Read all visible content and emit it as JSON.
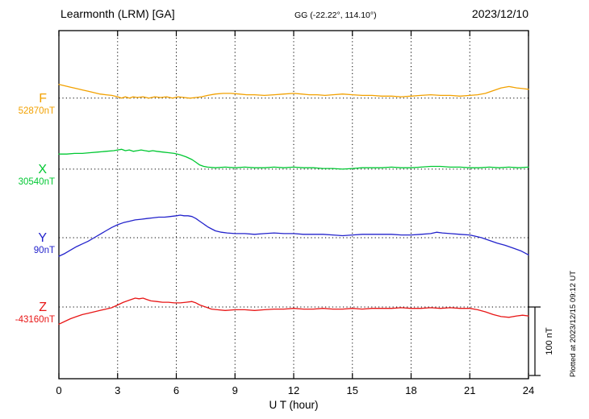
{
  "chart_data": {
    "type": "line",
    "title": "Learmonth (LRM)  [GA]",
    "subtitle": "GG (-22.22°, 114.10°)",
    "date": "2023/12/10",
    "xlabel": "U T (hour)",
    "xlim": [
      0,
      24
    ],
    "xticks": [
      0,
      3,
      6,
      9,
      12,
      15,
      18,
      21,
      24
    ],
    "grid": "dotted vertical lines at 3h intervals, dotted horizontal baseline per trace",
    "legend_position": "left-of-axis",
    "scale_bar_label": "100 nT",
    "scale_bar_nt": 100,
    "plotted_note": "Plotted at 2023/12/15 09:12 UT",
    "frame_color": "#000000",
    "series": [
      {
        "name": "F",
        "baseline_label": "52870nT",
        "color": "#f2a100",
        "baseline_frac": 0.194,
        "unit": "nT offset from baseline",
        "points": [
          [
            0,
            20
          ],
          [
            0.3,
            18
          ],
          [
            0.6,
            16
          ],
          [
            0.9,
            14
          ],
          [
            1.2,
            12
          ],
          [
            1.5,
            10
          ],
          [
            1.8,
            8
          ],
          [
            2.1,
            6
          ],
          [
            2.4,
            5
          ],
          [
            2.7,
            4
          ],
          [
            3.0,
            2
          ],
          [
            3.2,
            0
          ],
          [
            3.4,
            2
          ],
          [
            3.6,
            0
          ],
          [
            3.8,
            2
          ],
          [
            4.0,
            1
          ],
          [
            4.3,
            2
          ],
          [
            4.6,
            0
          ],
          [
            4.9,
            2
          ],
          [
            5.2,
            1
          ],
          [
            5.5,
            2
          ],
          [
            5.8,
            0
          ],
          [
            6.1,
            2
          ],
          [
            6.4,
            1
          ],
          [
            6.7,
            0
          ],
          [
            7.0,
            1
          ],
          [
            7.3,
            2
          ],
          [
            7.6,
            4
          ],
          [
            8.0,
            6
          ],
          [
            8.4,
            7
          ],
          [
            8.8,
            7
          ],
          [
            9.2,
            6
          ],
          [
            9.6,
            5
          ],
          [
            10.0,
            5
          ],
          [
            10.5,
            4
          ],
          [
            11.0,
            5
          ],
          [
            11.5,
            6
          ],
          [
            12.0,
            7
          ],
          [
            12.4,
            6
          ],
          [
            12.8,
            5
          ],
          [
            13.2,
            5
          ],
          [
            13.6,
            4
          ],
          [
            14.0,
            5
          ],
          [
            14.5,
            6
          ],
          [
            15.0,
            5
          ],
          [
            15.5,
            4
          ],
          [
            16.0,
            4
          ],
          [
            16.5,
            3
          ],
          [
            17.0,
            3
          ],
          [
            17.5,
            2
          ],
          [
            18.0,
            3
          ],
          [
            18.5,
            4
          ],
          [
            19.0,
            5
          ],
          [
            19.5,
            4
          ],
          [
            20.0,
            4
          ],
          [
            20.5,
            3
          ],
          [
            21.0,
            4
          ],
          [
            21.4,
            5
          ],
          [
            21.8,
            7
          ],
          [
            22.2,
            11
          ],
          [
            22.6,
            15
          ],
          [
            23.0,
            17
          ],
          [
            23.4,
            15
          ],
          [
            23.7,
            14
          ],
          [
            24,
            13
          ]
        ]
      },
      {
        "name": "X",
        "baseline_label": "30540nT",
        "color": "#00c832",
        "baseline_frac": 0.398,
        "unit": "nT offset from baseline",
        "points": [
          [
            0,
            22
          ],
          [
            0.4,
            22
          ],
          [
            0.8,
            23
          ],
          [
            1.2,
            23
          ],
          [
            1.6,
            24
          ],
          [
            2.0,
            25
          ],
          [
            2.4,
            26
          ],
          [
            2.8,
            27
          ],
          [
            3.0,
            28
          ],
          [
            3.2,
            29
          ],
          [
            3.4,
            27
          ],
          [
            3.6,
            28
          ],
          [
            3.8,
            26
          ],
          [
            4.0,
            27
          ],
          [
            4.2,
            28
          ],
          [
            4.4,
            27
          ],
          [
            4.6,
            26
          ],
          [
            4.8,
            27
          ],
          [
            5.0,
            26
          ],
          [
            5.3,
            25
          ],
          [
            5.6,
            24
          ],
          [
            5.9,
            23
          ],
          [
            6.2,
            21
          ],
          [
            6.5,
            18
          ],
          [
            6.8,
            14
          ],
          [
            7.0,
            10
          ],
          [
            7.2,
            6
          ],
          [
            7.4,
            4
          ],
          [
            7.6,
            3
          ],
          [
            8.0,
            2
          ],
          [
            8.5,
            3
          ],
          [
            9.0,
            2
          ],
          [
            9.5,
            3
          ],
          [
            10.0,
            2
          ],
          [
            10.5,
            2
          ],
          [
            11.0,
            3
          ],
          [
            11.5,
            2
          ],
          [
            12.0,
            3
          ],
          [
            12.5,
            2
          ],
          [
            13.0,
            2
          ],
          [
            13.5,
            1
          ],
          [
            14.0,
            1
          ],
          [
            14.5,
            0
          ],
          [
            15.0,
            1
          ],
          [
            15.5,
            2
          ],
          [
            16.0,
            2
          ],
          [
            16.5,
            2
          ],
          [
            17.0,
            3
          ],
          [
            17.5,
            2
          ],
          [
            18.0,
            2
          ],
          [
            18.5,
            3
          ],
          [
            19.0,
            4
          ],
          [
            19.5,
            4
          ],
          [
            20.0,
            3
          ],
          [
            20.5,
            3
          ],
          [
            21.0,
            2
          ],
          [
            21.5,
            2
          ],
          [
            22.0,
            3
          ],
          [
            22.5,
            2
          ],
          [
            23.0,
            3
          ],
          [
            23.5,
            2
          ],
          [
            24,
            3
          ]
        ]
      },
      {
        "name": "Y",
        "baseline_label": "90nT",
        "color": "#2323cc",
        "baseline_frac": 0.595,
        "unit": "nT offset from baseline",
        "points": [
          [
            0,
            -27
          ],
          [
            0.3,
            -23
          ],
          [
            0.6,
            -18
          ],
          [
            0.9,
            -13
          ],
          [
            1.2,
            -9
          ],
          [
            1.5,
            -5
          ],
          [
            1.8,
            0
          ],
          [
            2.1,
            5
          ],
          [
            2.4,
            10
          ],
          [
            2.7,
            15
          ],
          [
            3.0,
            19
          ],
          [
            3.3,
            22
          ],
          [
            3.6,
            24
          ],
          [
            3.9,
            26
          ],
          [
            4.2,
            27
          ],
          [
            4.5,
            28
          ],
          [
            4.8,
            29
          ],
          [
            5.1,
            30
          ],
          [
            5.4,
            30
          ],
          [
            5.7,
            31
          ],
          [
            6.0,
            32
          ],
          [
            6.2,
            33
          ],
          [
            6.4,
            32
          ],
          [
            6.6,
            32
          ],
          [
            6.8,
            31
          ],
          [
            7.0,
            28
          ],
          [
            7.2,
            24
          ],
          [
            7.4,
            20
          ],
          [
            7.6,
            16
          ],
          [
            7.8,
            13
          ],
          [
            8.0,
            10
          ],
          [
            8.3,
            8
          ],
          [
            8.6,
            7
          ],
          [
            9.0,
            6
          ],
          [
            9.5,
            6
          ],
          [
            10.0,
            5
          ],
          [
            10.5,
            6
          ],
          [
            11.0,
            7
          ],
          [
            11.5,
            6
          ],
          [
            12.0,
            6
          ],
          [
            12.5,
            5
          ],
          [
            13.0,
            5
          ],
          [
            13.5,
            5
          ],
          [
            14.0,
            4
          ],
          [
            14.5,
            3
          ],
          [
            15.0,
            4
          ],
          [
            15.5,
            5
          ],
          [
            16.0,
            5
          ],
          [
            16.5,
            5
          ],
          [
            17.0,
            5
          ],
          [
            17.5,
            4
          ],
          [
            18.0,
            4
          ],
          [
            18.5,
            5
          ],
          [
            19.0,
            6
          ],
          [
            19.3,
            8
          ],
          [
            19.6,
            7
          ],
          [
            20.0,
            6
          ],
          [
            20.5,
            5
          ],
          [
            21.0,
            4
          ],
          [
            21.3,
            2
          ],
          [
            21.6,
            0
          ],
          [
            22.0,
            -4
          ],
          [
            22.4,
            -8
          ],
          [
            22.8,
            -11
          ],
          [
            23.2,
            -15
          ],
          [
            23.6,
            -19
          ],
          [
            24,
            -25
          ]
        ]
      },
      {
        "name": "Z",
        "baseline_label": "-43160nT",
        "color": "#e81616",
        "baseline_frac": 0.794,
        "unit": "nT offset from baseline",
        "points": [
          [
            0,
            -25
          ],
          [
            0.3,
            -21
          ],
          [
            0.6,
            -17
          ],
          [
            0.9,
            -14
          ],
          [
            1.2,
            -11
          ],
          [
            1.5,
            -9
          ],
          [
            1.8,
            -7
          ],
          [
            2.1,
            -5
          ],
          [
            2.4,
            -3
          ],
          [
            2.7,
            -1
          ],
          [
            3.0,
            3
          ],
          [
            3.3,
            7
          ],
          [
            3.6,
            10
          ],
          [
            3.9,
            13
          ],
          [
            4.1,
            12
          ],
          [
            4.3,
            13
          ],
          [
            4.5,
            11
          ],
          [
            4.7,
            9
          ],
          [
            5.0,
            8
          ],
          [
            5.3,
            7
          ],
          [
            5.6,
            7
          ],
          [
            5.9,
            6
          ],
          [
            6.2,
            6
          ],
          [
            6.5,
            7
          ],
          [
            6.8,
            8
          ],
          [
            7.0,
            6
          ],
          [
            7.2,
            3
          ],
          [
            7.5,
            0
          ],
          [
            7.8,
            -3
          ],
          [
            8.1,
            -4
          ],
          [
            8.5,
            -5
          ],
          [
            9.0,
            -4
          ],
          [
            9.5,
            -4
          ],
          [
            10.0,
            -5
          ],
          [
            10.5,
            -4
          ],
          [
            11.0,
            -3
          ],
          [
            11.5,
            -3
          ],
          [
            12.0,
            -2
          ],
          [
            12.5,
            -3
          ],
          [
            13.0,
            -3
          ],
          [
            13.5,
            -2
          ],
          [
            14.0,
            -3
          ],
          [
            14.5,
            -3
          ],
          [
            15.0,
            -2
          ],
          [
            15.5,
            -3
          ],
          [
            16.0,
            -2
          ],
          [
            16.5,
            -2
          ],
          [
            17.0,
            -2
          ],
          [
            17.5,
            -1
          ],
          [
            18.0,
            -2
          ],
          [
            18.5,
            -2
          ],
          [
            19.0,
            -1
          ],
          [
            19.5,
            -2
          ],
          [
            20.0,
            -1
          ],
          [
            20.5,
            -2
          ],
          [
            21.0,
            -2
          ],
          [
            21.4,
            -4
          ],
          [
            21.8,
            -7
          ],
          [
            22.2,
            -11
          ],
          [
            22.6,
            -14
          ],
          [
            23.0,
            -15
          ],
          [
            23.4,
            -13
          ],
          [
            23.7,
            -12
          ],
          [
            24,
            -13
          ]
        ]
      }
    ]
  }
}
